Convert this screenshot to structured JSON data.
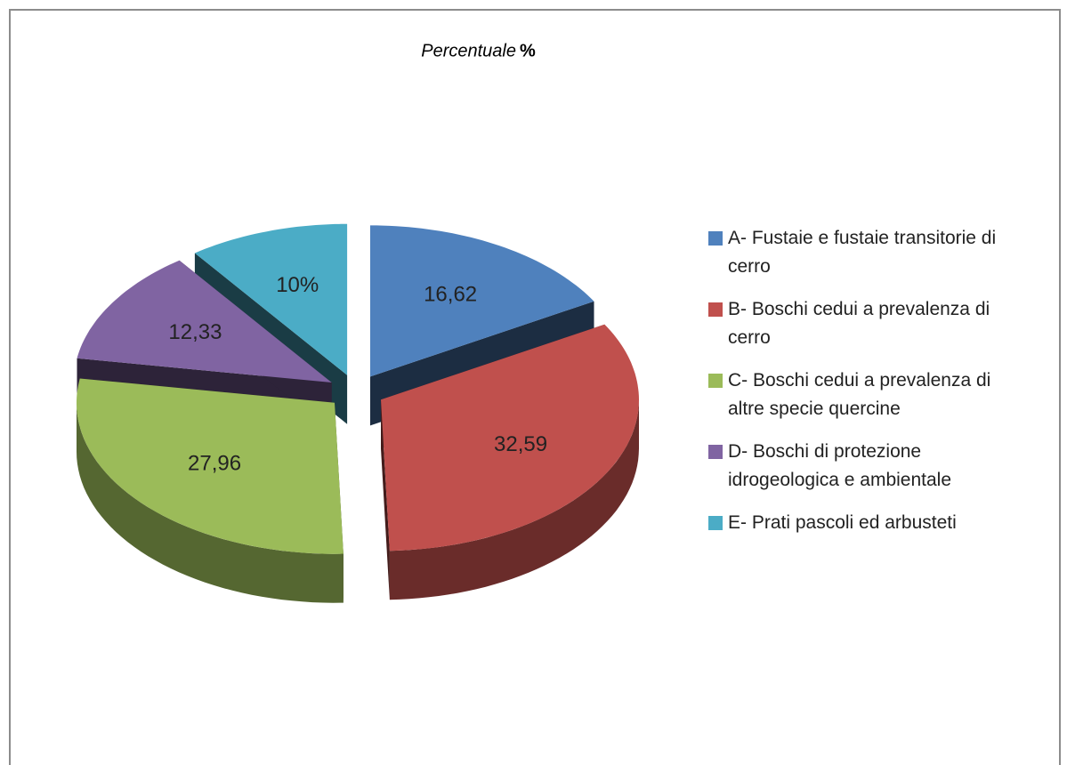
{
  "chart_data": {
    "type": "pie3d",
    "title": "Percentuale",
    "title_unit": "%",
    "categories": [
      "A- Fustaie e fustaie transitorie di cerro",
      "B- Boschi cedui a prevalenza di cerro",
      "C- Boschi cedui a prevalenza di altre specie quercine",
      "D- Boschi di protezione idrogeologica e ambientale",
      "E- Prati pascoli ed arbusteti"
    ],
    "values": [
      16.62,
      32.59,
      27.96,
      12.33,
      10
    ],
    "value_labels": [
      "16,62",
      "32,59",
      "27,96",
      "12,33",
      "10%"
    ],
    "colors": [
      "#4f81bd",
      "#c0504d",
      "#9bbb59",
      "#8064a2",
      "#4bacc6"
    ],
    "legend": "right"
  }
}
